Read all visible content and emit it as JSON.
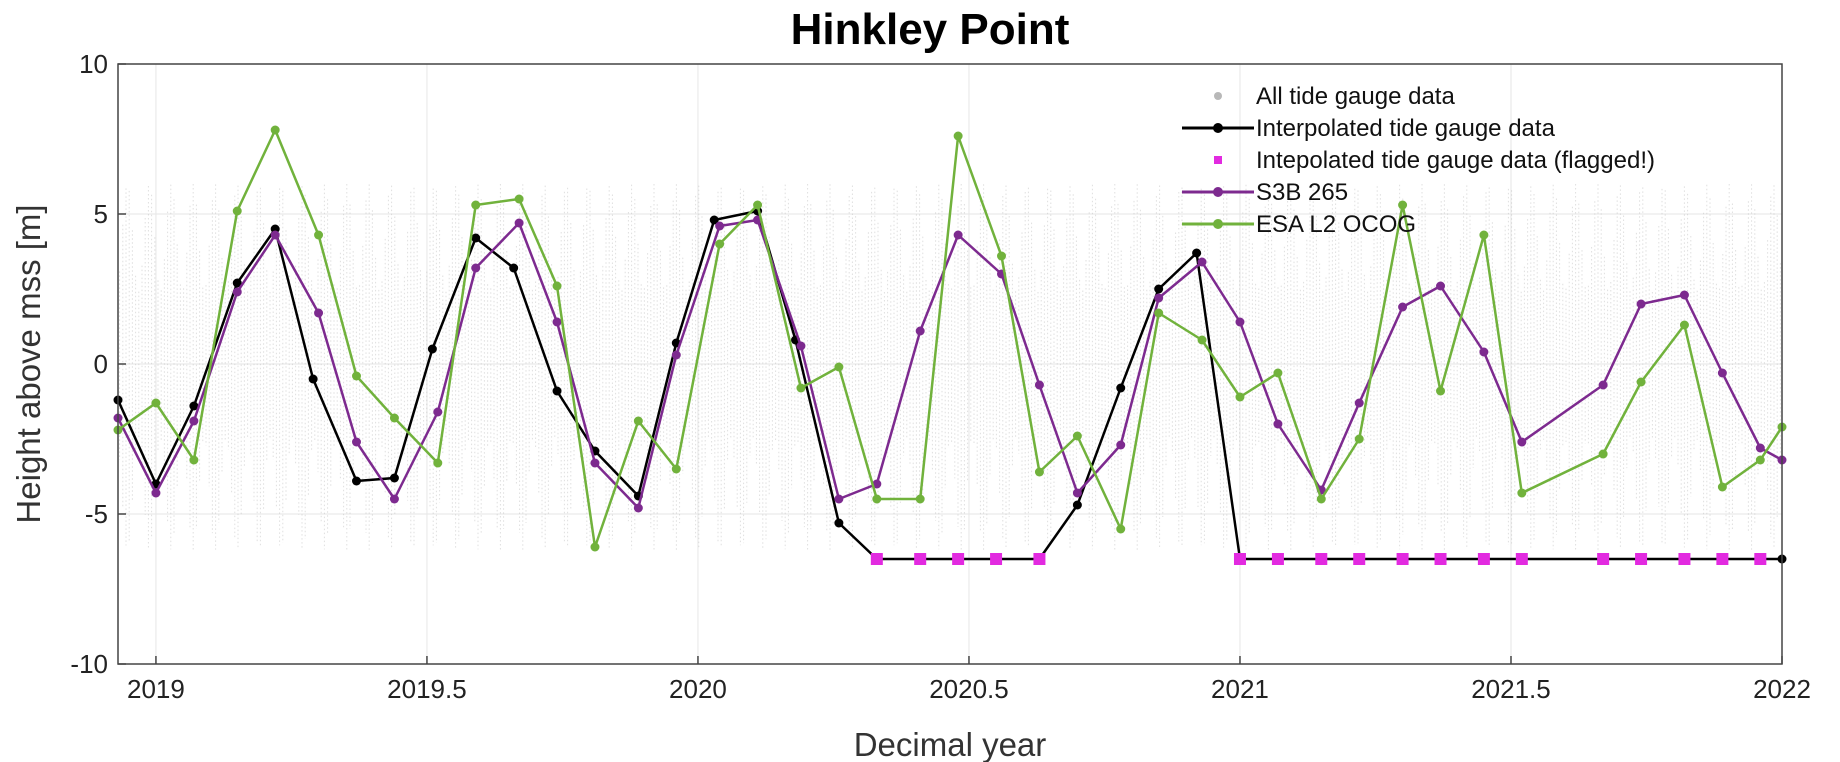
{
  "chart_data": {
    "type": "line",
    "title": "Hinkley Point",
    "xlabel": "Decimal year",
    "ylabel": "Height above mss [m]",
    "xlim": [
      2018.93,
      2022.0
    ],
    "ylim": [
      -10,
      10
    ],
    "xticks": [
      2019,
      2019.5,
      2020,
      2020.5,
      2021,
      2021.5,
      2022
    ],
    "xtick_labels": [
      "2019",
      "2019.5",
      "2020",
      "2020.5",
      "2021",
      "2021.5",
      "2022"
    ],
    "yticks": [
      -10,
      -5,
      0,
      5,
      10
    ],
    "ytick_labels": [
      "-10",
      "-5",
      "0",
      "5",
      "10"
    ],
    "grid": true,
    "legend_position": "top-right",
    "background_series": {
      "name": "All tide gauge data",
      "color": "#b8b8b8",
      "x_range": [
        2018.93,
        2022.0
      ],
      "y_range": [
        -6.2,
        6.0
      ]
    },
    "series": [
      {
        "name": "Interpolated tide gauge data",
        "color": "#000000",
        "x": [
          2018.93,
          2019.0,
          2019.07,
          2019.15,
          2019.22,
          2019.29,
          2019.37,
          2019.44,
          2019.51,
          2019.59,
          2019.66,
          2019.74,
          2019.81,
          2019.89,
          2019.96,
          2020.03,
          2020.11,
          2020.18,
          2020.26,
          2020.33,
          2020.41,
          2020.48,
          2020.55,
          2020.63,
          2020.7,
          2020.78,
          2020.85,
          2020.92,
          2021.0,
          2022.0
        ],
        "y": [
          -1.2,
          -4.0,
          -1.4,
          2.7,
          4.5,
          -0.5,
          -3.9,
          -3.8,
          0.5,
          4.2,
          3.2,
          -0.9,
          -2.9,
          -4.4,
          0.7,
          4.8,
          5.1,
          0.8,
          -5.3,
          -6.5,
          -6.5,
          -6.5,
          -6.5,
          -6.5,
          -4.7,
          -0.8,
          2.5,
          3.7,
          -6.5,
          -6.5
        ]
      },
      {
        "name": "Intepolated tide gauge data (flagged!)",
        "color": "#e22ae0",
        "x": [
          2020.33,
          2020.41,
          2020.48,
          2020.55,
          2020.63,
          2021.0,
          2021.07,
          2021.15,
          2021.22,
          2021.3,
          2021.37,
          2021.45,
          2021.52,
          2021.67,
          2021.74,
          2021.82,
          2021.89,
          2021.96
        ],
        "y": [
          -6.5,
          -6.5,
          -6.5,
          -6.5,
          -6.5,
          -6.5,
          -6.5,
          -6.5,
          -6.5,
          -6.5,
          -6.5,
          -6.5,
          -6.5,
          -6.5,
          -6.5,
          -6.5,
          -6.5,
          -6.5
        ]
      },
      {
        "name": "S3B 265",
        "color": "#7d2a8f",
        "x": [
          2018.93,
          2019.0,
          2019.07,
          2019.15,
          2019.22,
          2019.3,
          2019.37,
          2019.44,
          2019.52,
          2019.59,
          2019.67,
          2019.74,
          2019.81,
          2019.89,
          2019.96,
          2020.04,
          2020.11,
          2020.19,
          2020.26,
          2020.33,
          2020.41,
          2020.48,
          2020.56,
          2020.63,
          2020.7,
          2020.78,
          2020.85,
          2020.93,
          2021.0,
          2021.07,
          2021.15,
          2021.22,
          2021.3,
          2021.37,
          2021.45,
          2021.52,
          2021.67,
          2021.74,
          2021.82,
          2021.89,
          2021.96,
          2022.0
        ],
        "y": [
          -1.8,
          -4.3,
          -1.9,
          2.4,
          4.3,
          1.7,
          -2.6,
          -4.5,
          -1.6,
          3.2,
          4.7,
          1.4,
          -3.3,
          -4.8,
          0.3,
          4.6,
          4.8,
          0.6,
          -4.5,
          -4.0,
          1.1,
          4.3,
          3.0,
          -0.7,
          -4.3,
          -2.7,
          2.2,
          3.4,
          1.4,
          -2.0,
          -4.2,
          -1.3,
          1.9,
          2.6,
          0.4,
          -2.6,
          -0.7,
          2.0,
          2.3,
          -0.3,
          -2.8,
          -3.2
        ]
      },
      {
        "name": "ESA L2 OCOG",
        "color": "#71b23c",
        "x": [
          2018.93,
          2019.0,
          2019.07,
          2019.15,
          2019.22,
          2019.3,
          2019.37,
          2019.44,
          2019.52,
          2019.59,
          2019.67,
          2019.74,
          2019.81,
          2019.89,
          2019.96,
          2020.04,
          2020.11,
          2020.19,
          2020.26,
          2020.33,
          2020.41,
          2020.48,
          2020.56,
          2020.63,
          2020.7,
          2020.78,
          2020.85,
          2020.93,
          2021.0,
          2021.07,
          2021.15,
          2021.22,
          2021.3,
          2021.37,
          2021.45,
          2021.52,
          2021.67,
          2021.74,
          2021.82,
          2021.89,
          2021.96,
          2022.0
        ],
        "y": [
          -2.2,
          -1.3,
          -3.2,
          5.1,
          7.8,
          4.3,
          -0.4,
          -1.8,
          -3.3,
          5.3,
          5.5,
          2.6,
          -6.1,
          -1.9,
          -3.5,
          4.0,
          5.3,
          -0.8,
          -0.1,
          -4.5,
          -4.5,
          7.6,
          3.6,
          -3.6,
          -2.4,
          -5.5,
          1.7,
          0.8,
          -1.1,
          -0.3,
          -4.5,
          -2.5,
          5.3,
          -0.9,
          4.3,
          -4.3,
          -3.0,
          -0.6,
          1.3,
          -4.1,
          -3.2,
          -2.1
        ]
      }
    ]
  }
}
